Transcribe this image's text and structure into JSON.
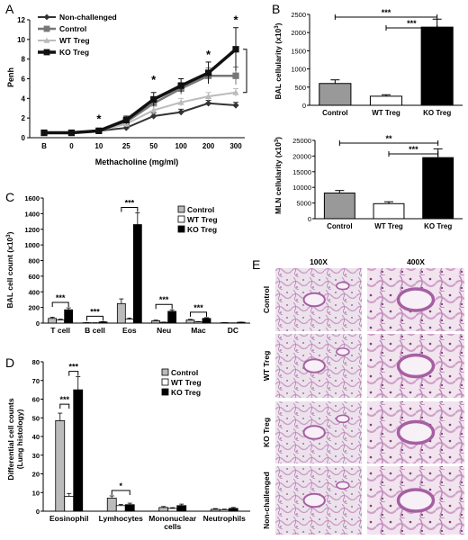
{
  "panels": {
    "A": {
      "letter": "A",
      "ylabel": "Penh",
      "xlabel": "Methacholine (mg/ml)",
      "chart_data": {
        "type": "line",
        "categories": [
          "B",
          "0",
          "10",
          "25",
          "50",
          "100",
          "200",
          "300"
        ],
        "ylim": [
          0,
          12
        ],
        "yticks": [
          0,
          2,
          4,
          6,
          8,
          10,
          12
        ],
        "series": [
          {
            "name": "Non-challenged",
            "values": [
              0.5,
              0.5,
              0.7,
              1.0,
              2.2,
              2.6,
              3.5,
              3.3
            ],
            "errors": [
              0.05,
              0.05,
              0.1,
              0.2,
              0.3,
              0.3,
              0.3,
              0.3
            ],
            "color": "#333333",
            "marker": "diamond",
            "width": 2
          },
          {
            "name": "Control",
            "values": [
              0.5,
              0.5,
              0.7,
              1.6,
              3.5,
              5.0,
              6.3,
              6.3
            ],
            "errors": [
              0.05,
              0.05,
              0.1,
              0.3,
              0.5,
              0.6,
              0.8,
              0.9
            ],
            "color": "#777777",
            "marker": "square",
            "width": 2.5
          },
          {
            "name": "WT Treg",
            "values": [
              0.5,
              0.5,
              0.7,
              1.4,
              2.8,
              3.6,
              4.2,
              4.6
            ],
            "errors": [
              0.05,
              0.05,
              0.1,
              0.3,
              0.4,
              0.4,
              0.4,
              0.4
            ],
            "color": "#bbbbbb",
            "marker": "triangle",
            "width": 2
          },
          {
            "name": "KO Treg",
            "values": [
              0.5,
              0.5,
              0.7,
              1.8,
              3.9,
              5.3,
              6.6,
              9.0
            ],
            "errors": [
              0.05,
              0.05,
              0.1,
              0.4,
              0.7,
              0.7,
              1.1,
              2.2
            ],
            "color": "#111111",
            "marker": "square",
            "width": 3.5
          }
        ],
        "significance": [
          {
            "category": "10",
            "label": "*"
          },
          {
            "category": "50",
            "label": "*"
          },
          {
            "category": "200",
            "label": "*"
          },
          {
            "category": "300",
            "label": "*"
          }
        ]
      }
    },
    "B1": {
      "letter": "B",
      "ylabel": "BAL cellularity (x10",
      "ylabel_sup": "3",
      "ylabel_end": ")",
      "chart_data": {
        "type": "bar",
        "categories": [
          "Control",
          "WT Treg",
          "KO Treg"
        ],
        "values": [
          600,
          250,
          2150
        ],
        "errors": [
          100,
          40,
          220
        ],
        "colors": [
          "#999999",
          "#ffffff",
          "#000000"
        ],
        "ylim": [
          0,
          2500
        ],
        "yticks": [
          0,
          500,
          1000,
          1500,
          2000,
          2500
        ],
        "significance": [
          {
            "from": "Control",
            "to": "KO Treg",
            "label": "***"
          },
          {
            "from": "WT Treg",
            "to": "KO Treg",
            "label": "***"
          }
        ]
      }
    },
    "B2": {
      "ylabel": "MLN cellularity (x10",
      "ylabel_sup": "3",
      "ylabel_end": ")",
      "chart_data": {
        "type": "bar",
        "categories": [
          "Control",
          "WT Treg",
          "KO Treg"
        ],
        "values": [
          8200,
          4800,
          19500
        ],
        "errors": [
          800,
          600,
          2800
        ],
        "colors": [
          "#999999",
          "#ffffff",
          "#000000"
        ],
        "ylim": [
          0,
          25000
        ],
        "yticks": [
          0,
          5000,
          10000,
          15000,
          20000,
          25000
        ],
        "significance": [
          {
            "from": "Control",
            "to": "KO Treg",
            "label": "**"
          },
          {
            "from": "WT Treg",
            "to": "KO Treg",
            "label": "***"
          }
        ]
      }
    },
    "C": {
      "letter": "C",
      "ylabel": "BAL cell count (x10",
      "ylabel_sup": "3",
      "ylabel_end": ")",
      "chart_data": {
        "type": "bar",
        "categories": [
          "T cell",
          "B cell",
          "Eos",
          "Neu",
          "Mac",
          "DC"
        ],
        "ylim": [
          0,
          1600
        ],
        "yticks": [
          0,
          200,
          400,
          600,
          800,
          1000,
          1200,
          1400,
          1600
        ],
        "series": [
          {
            "name": "Control",
            "values": [
              60,
              5,
              250,
              30,
              40,
              5
            ],
            "errors": [
              15,
              2,
              60,
              8,
              8,
              2
            ],
            "color": "#bbbbbb"
          },
          {
            "name": "WT Treg",
            "values": [
              40,
              3,
              50,
              10,
              15,
              2
            ],
            "errors": [
              10,
              1,
              15,
              3,
              5,
              1
            ],
            "color": "#ffffff"
          },
          {
            "name": "KO Treg",
            "values": [
              170,
              15,
              1260,
              150,
              60,
              10
            ],
            "errors": [
              25,
              4,
              150,
              20,
              10,
              3
            ],
            "color": "#000000"
          }
        ],
        "significance": [
          {
            "category": "T cell",
            "label": "***"
          },
          {
            "category": "B cell",
            "label": "***"
          },
          {
            "category": "Eos",
            "label": "***"
          },
          {
            "category": "Neu",
            "label": "***"
          },
          {
            "category": "Mac",
            "label": "***"
          }
        ]
      }
    },
    "D": {
      "letter": "D",
      "ylabel": "Differential cell counts",
      "ylabel2": "(Lung histology)",
      "chart_data": {
        "type": "bar",
        "categories": [
          "Eosinophil",
          "Lymhocytes",
          "Mononuclear cells",
          "Neutrophils"
        ],
        "category_lines": [
          [
            "Eosinophil"
          ],
          [
            "Lymhocytes"
          ],
          [
            "Mononuclear",
            "cells"
          ],
          [
            "Neutrophils"
          ]
        ],
        "ylim": [
          0,
          80
        ],
        "yticks": [
          0,
          10,
          20,
          30,
          40,
          50,
          60,
          70,
          80
        ],
        "series": [
          {
            "name": "Control",
            "values": [
              48.5,
              7,
              2,
              1
            ],
            "errors": [
              4,
              1.2,
              0.5,
              0.4
            ],
            "color": "#bbbbbb"
          },
          {
            "name": "WT Treg",
            "values": [
              8,
              3,
              1.5,
              0.8
            ],
            "errors": [
              1.5,
              0.6,
              0.4,
              0.3
            ],
            "color": "#ffffff"
          },
          {
            "name": "KO Treg",
            "values": [
              65,
              3.5,
              3,
              1.5
            ],
            "errors": [
              7,
              0.8,
              0.8,
              0.5
            ],
            "color": "#000000"
          }
        ],
        "significance": [
          {
            "category": "Eosinophil",
            "pair": "CW",
            "label": "***"
          },
          {
            "category": "Eosinophil",
            "pair": "WK",
            "label": "***"
          },
          {
            "category": "Lymhocytes",
            "pair": "CK",
            "label": "*"
          }
        ]
      }
    },
    "E": {
      "letter": "E",
      "columns": [
        "100X",
        "400X"
      ],
      "rows": [
        "Control",
        "WT Treg",
        "KO Treg",
        "Non-challenged"
      ]
    }
  }
}
